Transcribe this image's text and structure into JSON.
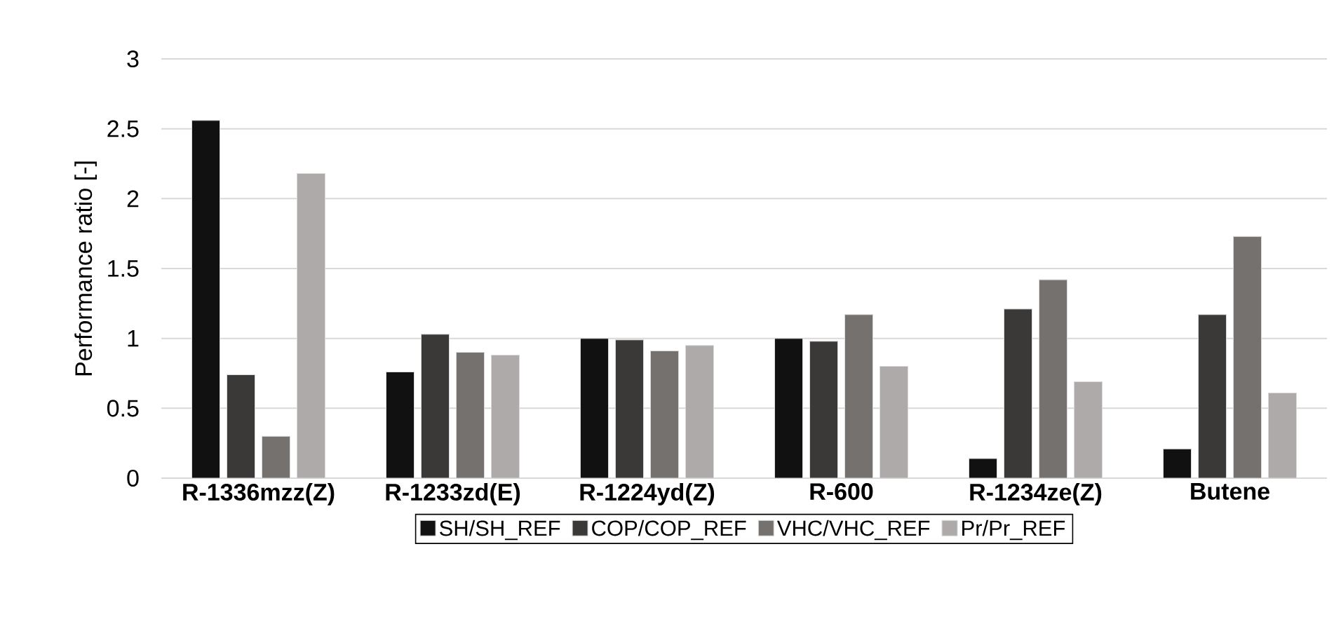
{
  "chart_data": {
    "type": "bar",
    "ylabel": "Performance ratio [-]",
    "categories": [
      "R-1336mzz(Z)",
      "R-1233zd(E)",
      "R-1224yd(Z)",
      "R-600",
      "R-1234ze(Z)",
      "Butene"
    ],
    "series": [
      {
        "name": "SH/SH_REF",
        "color": "#111111",
        "values": [
          2.56,
          0.76,
          1.0,
          1.0,
          0.14,
          0.21
        ]
      },
      {
        "name": "COP/COP_REF",
        "color": "#3a3937",
        "values": [
          0.74,
          1.03,
          0.99,
          0.98,
          1.21,
          1.17
        ]
      },
      {
        "name": "VHC/VHC_REF",
        "color": "#75716f",
        "values": [
          0.3,
          0.9,
          0.91,
          1.17,
          1.42,
          1.73
        ]
      },
      {
        "name": "Pr/Pr_REF",
        "color": "#adaaa9",
        "values": [
          2.18,
          0.88,
          0.95,
          0.8,
          0.69,
          0.61
        ]
      }
    ],
    "ylim": [
      0,
      3
    ],
    "yticks": [
      0,
      0.5,
      1,
      1.5,
      2,
      2.5,
      3
    ],
    "grid": "y",
    "legend": "bottom"
  }
}
